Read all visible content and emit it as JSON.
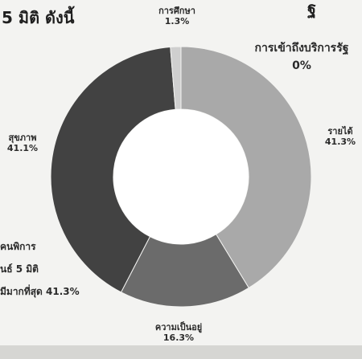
{
  "header": {
    "title": "5 มิติ ดังนี้",
    "corner_fragment": "ฐ"
  },
  "note_lines": [
    "คนพิการ",
    "นธ์ 5 มิติ",
    "มีมากที่สุด 41.3%"
  ],
  "chart_data": {
    "type": "pie",
    "donut": true,
    "title": "",
    "slices": [
      {
        "label": "การเข้าถึงบริการรัฐ",
        "value": 0,
        "value_label": "0%",
        "color": "#bdbdbd"
      },
      {
        "label": "รายได้",
        "value": 41.3,
        "value_label": "41.3%",
        "color": "#a9a9a9"
      },
      {
        "label": "ความเป็นอยู่",
        "value": 16.3,
        "value_label": "16.3%",
        "color": "#6b6b6b"
      },
      {
        "label": "สุขภาพ",
        "value": 41.1,
        "value_label": "41.1%",
        "color": "#424242"
      },
      {
        "label": "การศึกษา",
        "value": 1.3,
        "value_label": "1.3%",
        "color": "#cfcfcf"
      }
    ]
  }
}
